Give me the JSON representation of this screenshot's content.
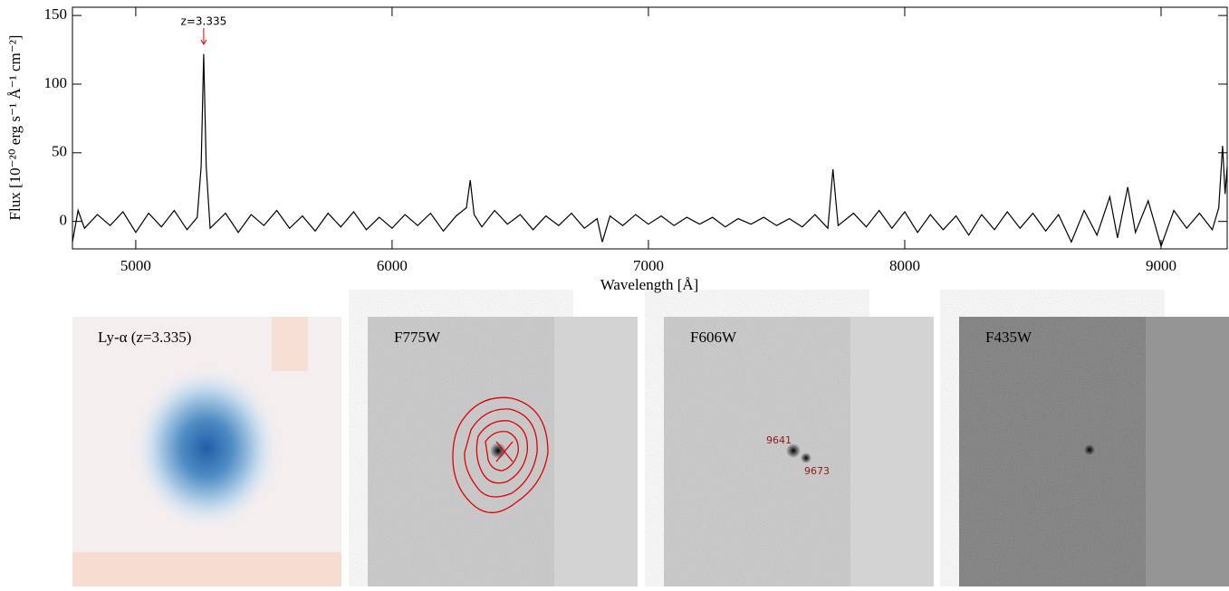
{
  "chart_data": {
    "type": "line",
    "xlabel": "Wavelength [Å]",
    "ylabel": "Flux [10⁻²⁰ erg s⁻¹ Å⁻¹ cm⁻²]",
    "annotations": [
      {
        "text": "z=3.335",
        "x": 5265,
        "color": "#e00000"
      }
    ],
    "x": [
      4753,
      4775,
      4800,
      4850,
      4900,
      4950,
      5000,
      5050,
      5100,
      5150,
      5200,
      5240,
      5255,
      5265,
      5275,
      5290,
      5350,
      5400,
      5450,
      5500,
      5550,
      5600,
      5650,
      5700,
      5750,
      5800,
      5850,
      5900,
      5950,
      6000,
      6050,
      6100,
      6150,
      6200,
      6250,
      6290,
      6305,
      6320,
      6350,
      6400,
      6450,
      6500,
      6550,
      6600,
      6650,
      6700,
      6750,
      6800,
      6820,
      6850,
      6900,
      6950,
      7000,
      7050,
      7100,
      7150,
      7200,
      7250,
      7300,
      7350,
      7400,
      7450,
      7500,
      7550,
      7600,
      7650,
      7700,
      7720,
      7740,
      7800,
      7850,
      7900,
      7950,
      8000,
      8050,
      8100,
      8150,
      8200,
      8250,
      8300,
      8350,
      8400,
      8450,
      8500,
      8550,
      8600,
      8650,
      8700,
      8750,
      8800,
      8830,
      8870,
      8900,
      8950,
      9000,
      9050,
      9100,
      9150,
      9200,
      9225,
      9240,
      9250,
      9258
    ],
    "series": [
      {
        "name": "spectrum",
        "color": "#000000",
        "values": [
          -15,
          8,
          -5,
          5,
          -3,
          7,
          -8,
          6,
          -4,
          8,
          -6,
          3,
          40,
          122,
          40,
          -5,
          6,
          -8,
          5,
          -3,
          8,
          -5,
          4,
          -7,
          6,
          -4,
          7,
          -6,
          3,
          -5,
          5,
          -3,
          6,
          -7,
          4,
          10,
          30,
          5,
          -4,
          8,
          -2,
          5,
          -6,
          4,
          -3,
          6,
          -5,
          2,
          -15,
          4,
          -3,
          5,
          -2,
          4,
          -3,
          3,
          -2,
          3,
          -4,
          2,
          -2,
          3,
          -3,
          2,
          -4,
          5,
          -5,
          38,
          -3,
          6,
          -4,
          8,
          -5,
          7,
          -8,
          5,
          -6,
          4,
          -10,
          5,
          -6,
          7,
          -5,
          6,
          -7,
          5,
          -15,
          8,
          -10,
          18,
          -12,
          25,
          -8,
          15,
          -18,
          8,
          -5,
          6,
          -6,
          10,
          55,
          20,
          40
        ]
      }
    ],
    "xlim": [
      4753,
      9258
    ],
    "ylim": [
      -20,
      156
    ],
    "xticks": [
      5000,
      6000,
      7000,
      8000,
      9000
    ],
    "yticks": [
      0,
      50,
      100,
      150
    ]
  },
  "panels": [
    {
      "label": "Ly-α (z=3.335)"
    },
    {
      "label": "F775W"
    },
    {
      "label": "F606W",
      "sources": [
        "9641",
        "9673"
      ]
    },
    {
      "label": "F435W"
    }
  ]
}
